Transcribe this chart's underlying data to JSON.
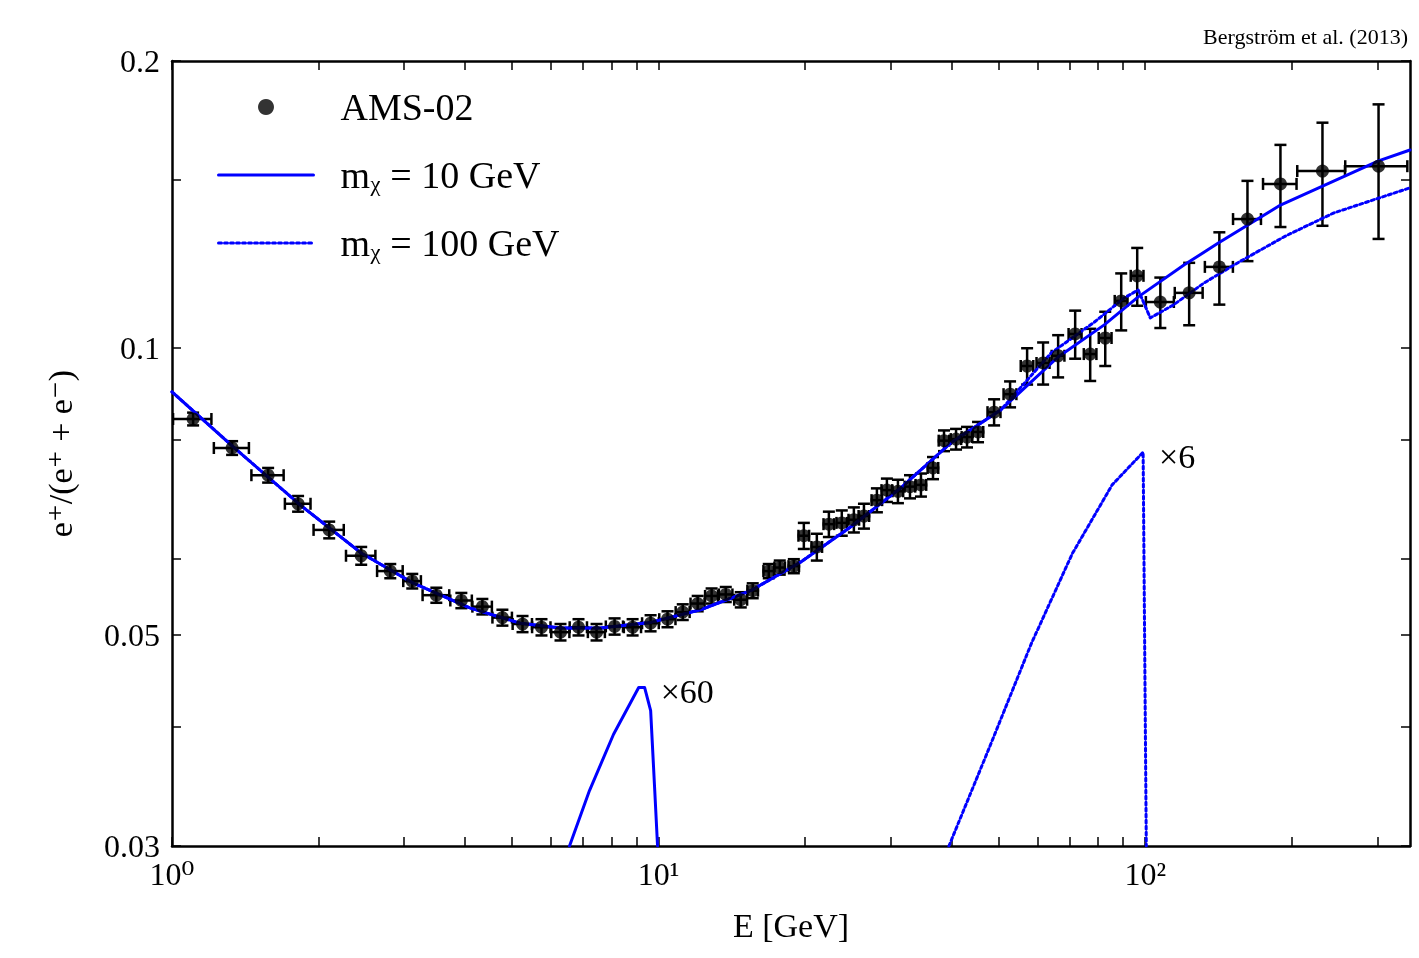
{
  "chart_data": {
    "type": "scatter",
    "xlabel": "E [GeV]",
    "ylabel": "e⁺/(e⁺ + e⁻)",
    "xlim": [
      1,
      350
    ],
    "ylim": [
      0.03,
      0.2
    ],
    "log": "xy",
    "grid": false,
    "legend": "top left",
    "xticks": [
      {
        "value": 1,
        "label": "10⁰"
      },
      {
        "value": 2,
        "label": null
      },
      {
        "value": 3,
        "label": null
      },
      {
        "value": 4,
        "label": null
      },
      {
        "value": 5,
        "label": null
      },
      {
        "value": 6,
        "label": null
      },
      {
        "value": 7,
        "label": null
      },
      {
        "value": 8,
        "label": null
      },
      {
        "value": 9,
        "label": null
      },
      {
        "value": 10,
        "label": "10¹"
      },
      {
        "value": 20,
        "label": null
      },
      {
        "value": 30,
        "label": null
      },
      {
        "value": 40,
        "label": null
      },
      {
        "value": 50,
        "label": null
      },
      {
        "value": 60,
        "label": null
      },
      {
        "value": 70,
        "label": null
      },
      {
        "value": 80,
        "label": null
      },
      {
        "value": 90,
        "label": null
      },
      {
        "value": 100,
        "label": "10²"
      },
      {
        "value": 200,
        "label": null
      },
      {
        "value": 300,
        "label": null
      }
    ],
    "yticks": [
      0.03,
      {
        "value": 0.04,
        "label": null
      },
      0.05,
      {
        "value": 0.06,
        "label": null
      },
      {
        "value": 0.08,
        "label": null
      },
      0.1,
      {
        "value": 0.15,
        "label": null
      },
      0.2
    ],
    "annotations": [
      "Bergström et al. (2013)",
      {
        "text": "×60",
        "x": 9.36,
        "y": 0.044
      },
      {
        "text": "×6",
        "x": 99.0,
        "y": 0.0777
      }
    ],
    "series": [
      {
        "name": "AMS-02",
        "color": "#000000",
        "marker": "circle",
        "x": [
          1.105,
          1.329,
          1.576,
          1.816,
          2.104,
          2.448,
          2.809,
          3.117,
          3.493,
          3.932,
          4.343,
          4.775,
          5.252,
          5.745,
          6.286,
          6.845,
          7.455,
          8.119,
          8.842,
          9.627,
          10.43,
          11.21,
          12.03,
          12.85,
          13.74,
          14.75,
          15.61,
          16.84,
          17.74,
          18.96,
          19.88,
          21.14,
          22.38,
          23.79,
          25.19,
          26.42,
          28.09,
          29.45,
          31.03,
          32.85,
          34.6,
          36.63,
          38.59,
          40.85,
          43.03,
          45.33,
          48.91,
          52.75,
          57.18,
          61.68,
          66.22,
          71.78,
          77.07,
          82.76,
          89.25,
          96.27,
          107.4,
          123.1,
          142.0,
          162.2,
          189.6,
          231.3,
          301.6
        ],
        "values": [
          0.0842,
          0.0785,
          0.0735,
          0.0686,
          0.0644,
          0.0605,
          0.0583,
          0.0569,
          0.055,
          0.0543,
          0.0535,
          0.0521,
          0.0513,
          0.0509,
          0.0503,
          0.0509,
          0.0503,
          0.051,
          0.0509,
          0.0514,
          0.0519,
          0.0528,
          0.0539,
          0.0549,
          0.0551,
          0.0544,
          0.0556,
          0.0583,
          0.0588,
          0.059,
          0.0635,
          0.0618,
          0.0653,
          0.0655,
          0.066,
          0.0666,
          0.0692,
          0.0709,
          0.0707,
          0.0715,
          0.0718,
          0.0748,
          0.0799,
          0.0802,
          0.0806,
          0.0816,
          0.0856,
          0.0894,
          0.0957,
          0.0964,
          0.0981,
          0.1034,
          0.0985,
          0.1024,
          0.112,
          0.119,
          0.1117,
          0.1142,
          0.1216,
          0.1365,
          0.1486,
          0.1533,
          0.1551
        ],
        "errors": [
          0.0013,
          0.0013,
          0.0013,
          0.0013,
          0.0013,
          0.0013,
          0.001,
          0.001,
          0.001,
          0.001,
          0.001,
          0.001,
          0.001,
          0.001,
          0.001,
          0.001,
          0.001,
          0.001,
          0.001,
          0.001,
          0.001,
          0.001,
          0.001,
          0.001,
          0.001,
          0.001,
          0.001,
          0.001,
          0.001,
          0.001,
          0.002,
          0.002,
          0.002,
          0.002,
          0.002,
          0.002,
          0.002,
          0.002,
          0.002,
          0.002,
          0.002,
          0.002,
          0.002,
          0.002,
          0.002,
          0.002,
          0.0027,
          0.0028,
          0.0042,
          0.0049,
          0.005,
          0.006,
          0.0062,
          0.0067,
          0.0077,
          0.0083,
          0.0068,
          0.0086,
          0.0106,
          0.0132,
          0.0147,
          0.019,
          0.025
        ],
        "xerrors": [
          0.1,
          0.11,
          0.12,
          0.11,
          0.15,
          0.17,
          0.17,
          0.13,
          0.22,
          0.2,
          0.2,
          0.22,
          0.24,
          0.25,
          0.27,
          0.28,
          0.3,
          0.33,
          0.36,
          0.38,
          0.4,
          0.37,
          0.4,
          0.39,
          0.44,
          0.45,
          0.39,
          0.42,
          0.44,
          0.47,
          0.5,
          0.53,
          0.56,
          0.59,
          0.63,
          0.66,
          0.7,
          0.74,
          0.78,
          0.82,
          0.87,
          0.92,
          0.96,
          1.0,
          1.08,
          1.13,
          1.5,
          1.6,
          1.7,
          1.9,
          2.0,
          2.2,
          2.3,
          2.5,
          2.7,
          2.9,
          7.1,
          8.1,
          9.4,
          10.7,
          15,
          26,
          44
        ]
      },
      {
        "name": "mᵪ = 10 GeV",
        "type": "line",
        "color": "#0000ff",
        "line_style": "solid",
        "marker": "none",
        "x": [
          1.0,
          1.329,
          1.834,
          2.448,
          3.117,
          4.104,
          5.2,
          6.286,
          7.597,
          9.627,
          12.2,
          15.46,
          19.6,
          24.84,
          31.47,
          39.89,
          50.53,
          66.22,
          82.36,
          96.74,
          120.3,
          141.3,
          189.6,
          301.6,
          350
        ],
        "values": [
          0.0899,
          0.0789,
          0.0684,
          0.0609,
          0.0567,
          0.0533,
          0.0514,
          0.0508,
          0.0508,
          0.0515,
          0.0531,
          0.0556,
          0.0596,
          0.0649,
          0.0713,
          0.0795,
          0.0861,
          0.0978,
          0.1057,
          0.1131,
          0.1222,
          0.1288,
          0.1412,
          0.1571,
          0.1613
        ]
      },
      {
        "name": "mᵪ = 100 GeV",
        "type": "line",
        "color": "#0000ff",
        "line_style": "dotted",
        "marker": "none",
        "x": [
          1.0,
          1.329,
          1.834,
          2.448,
          3.117,
          4.104,
          5.2,
          6.286,
          7.597,
          9.627,
          12.2,
          15.46,
          19.6,
          24.84,
          31.47,
          39.89,
          50.53,
          64.1,
          78.6,
          90.5,
          96.74,
          102.4,
          114.2,
          132.2,
          156.1,
          194.1,
          243.7,
          350
        ],
        "values": [
          0.0899,
          0.0789,
          0.0684,
          0.0609,
          0.0567,
          0.0533,
          0.0514,
          0.0508,
          0.0508,
          0.0515,
          0.0531,
          0.0556,
          0.0596,
          0.0649,
          0.0713,
          0.0795,
          0.0861,
          0.0988,
          0.1064,
          0.1128,
          0.115,
          0.1075,
          0.1109,
          0.117,
          0.1231,
          0.131,
          0.1385,
          0.1472
        ]
      },
      {
        "type": "line",
        "color": "#0000ff",
        "line_style": "solid",
        "marker": "none",
        "x": [
          6.56,
          7.21,
          8.08,
          9.1,
          9.36,
          9.63,
          9.81,
          9.95
        ],
        "values": [
          0.03,
          0.0343,
          0.0393,
          0.044,
          0.044,
          0.0416,
          0.0346,
          0.03
        ]
      },
      {
        "type": "line",
        "color": "#0000ff",
        "line_style": "dotted",
        "marker": "none",
        "x": [
          39.5,
          47.97,
          58.3,
          70.8,
          85.5,
          99.0,
          100.5
        ],
        "values": [
          0.03,
          0.0382,
          0.0489,
          0.0608,
          0.0718,
          0.0777,
          0.03
        ]
      }
    ]
  }
}
